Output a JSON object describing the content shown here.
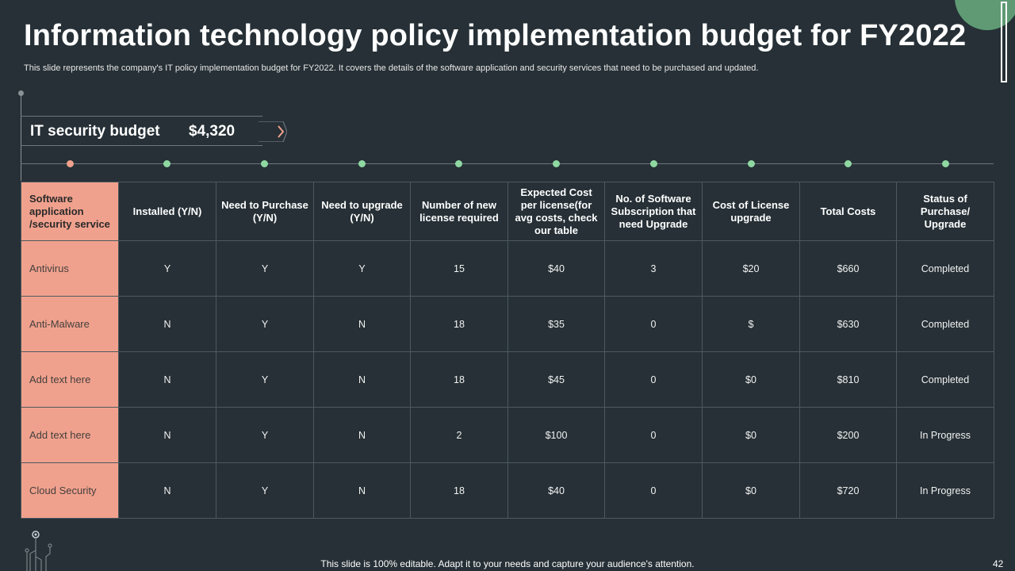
{
  "slide": {
    "title": "Information technology policy implementation budget for FY2022",
    "subtitle": "This slide represents the company's IT policy implementation budget for FY2022. It covers the details of the software application and security services that need to be purchased and updated.",
    "budget_label": "IT security budget",
    "budget_value": "$4,320",
    "footer": "This slide is 100% editable. Adapt it to your needs and capture your audience's attention.",
    "page_number": "42"
  },
  "colors": {
    "background": "#263036",
    "accent_salmon": "#f0a18d",
    "accent_green": "#8fd8a2",
    "corner_green": "#5f9a74"
  },
  "table": {
    "headers": [
      "Software application /security service",
      "Installed (Y/N)",
      "Need to Purchase (Y/N)",
      "Need to upgrade (Y/N)",
      "Number of new license required",
      "Expected Cost per license(for avg costs, check our table",
      "No. of Software Subscription that need Upgrade",
      "Cost of License upgrade",
      "Total Costs",
      "Status of Purchase/ Upgrade"
    ],
    "rows": [
      [
        "Antivirus",
        "Y",
        "Y",
        "Y",
        "15",
        "$40",
        "3",
        "$20",
        "$660",
        "Completed"
      ],
      [
        "Anti-Malware",
        "N",
        "Y",
        "N",
        "18",
        "$35",
        "0",
        "$",
        "$630",
        "Completed"
      ],
      [
        "Add text here",
        "N",
        "Y",
        "N",
        "18",
        "$45",
        "0",
        "$0",
        "$810",
        "Completed"
      ],
      [
        "Add text here",
        "N",
        "Y",
        "N",
        "2",
        "$100",
        "0",
        "$0",
        "$200",
        "In Progress"
      ],
      [
        "Cloud Security",
        "N",
        "Y",
        "N",
        "18",
        "$40",
        "0",
        "$0",
        "$720",
        "In Progress"
      ]
    ]
  }
}
